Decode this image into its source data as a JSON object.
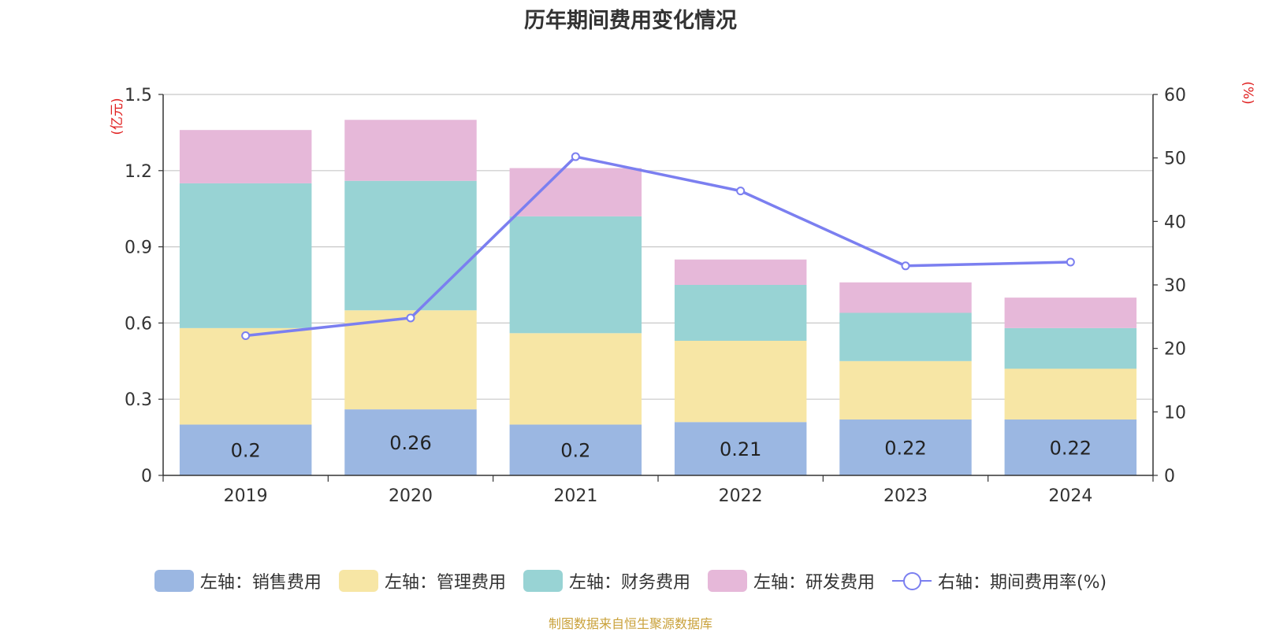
{
  "title": "历年期间费用变化情况",
  "footer": "制图数据来自恒生聚源数据库",
  "legend": [
    {
      "label": "左轴：销售费用",
      "color": "#9bb7e2",
      "kind": "bar"
    },
    {
      "label": "左轴：管理费用",
      "color": "#f7e6a5",
      "kind": "bar"
    },
    {
      "label": "左轴：财务费用",
      "color": "#98d3d4",
      "kind": "bar"
    },
    {
      "label": "左轴：研发费用",
      "color": "#e6b8d9",
      "kind": "bar"
    },
    {
      "label": "右轴：期间费用率(%)",
      "color": "#7b7ff0",
      "kind": "line"
    }
  ],
  "chart_data": {
    "type": "bar",
    "stacked": true,
    "categories": [
      "2019",
      "2020",
      "2021",
      "2022",
      "2023",
      "2024"
    ],
    "series": [
      {
        "name": "左轴：销售费用",
        "axis": "left",
        "color": "#9bb7e2",
        "values": [
          0.2,
          0.26,
          0.2,
          0.21,
          0.22,
          0.22
        ],
        "labels": [
          "0.2",
          "0.26",
          "0.2",
          "0.21",
          "0.22",
          "0.22"
        ]
      },
      {
        "name": "左轴：管理费用",
        "axis": "left",
        "color": "#f7e6a5",
        "values": [
          0.38,
          0.39,
          0.36,
          0.32,
          0.23,
          0.2
        ]
      },
      {
        "name": "左轴：财务费用",
        "axis": "left",
        "color": "#98d3d4",
        "values": [
          0.57,
          0.51,
          0.46,
          0.22,
          0.19,
          0.16
        ]
      },
      {
        "name": "左轴：研发费用",
        "axis": "left",
        "color": "#e6b8d9",
        "values": [
          0.21,
          0.24,
          0.19,
          0.1,
          0.12,
          0.12
        ]
      },
      {
        "name": "右轴：期间费用率(%)",
        "axis": "right",
        "type": "line",
        "color": "#7b7ff0",
        "values": [
          22.0,
          24.8,
          50.2,
          44.8,
          33.0,
          33.6
        ]
      }
    ],
    "left_axis": {
      "label": "(亿元)",
      "ylim": [
        0,
        1.5
      ],
      "ticks": [
        "0",
        "0.3",
        "0.6",
        "0.9",
        "1.2",
        "1.5"
      ]
    },
    "right_axis": {
      "label": "(%)",
      "ylim": [
        0,
        60
      ],
      "ticks": [
        "0",
        "10",
        "20",
        "30",
        "40",
        "50",
        "60"
      ]
    },
    "grid": true,
    "legend_position": "bottom"
  }
}
